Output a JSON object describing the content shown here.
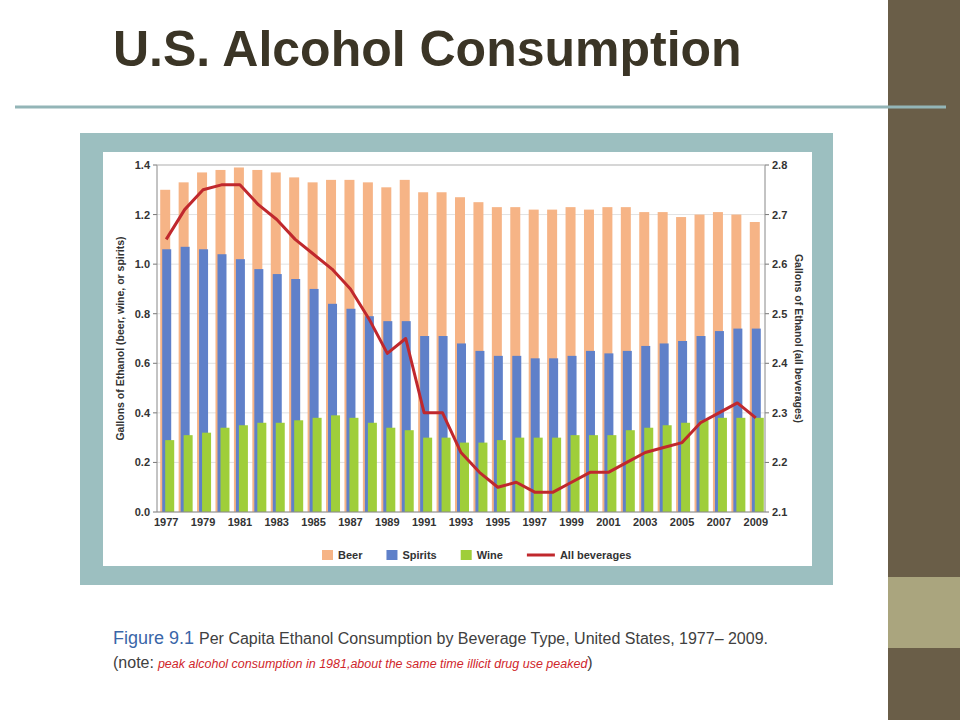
{
  "chart_data": {
    "type": "bar",
    "title": "U.S. Alcohol Consumption",
    "caption": [
      "Figure 9.1",
      "Per Capita Ethanol Consumption by Beverage Type, United States, 1977– 2009. (note:",
      "peak alcohol consumption in 1981,about the same time illicit drug use peaked",
      ")"
    ],
    "ylabel": "Gallons of Ethanol (beer, wine, or spirits)",
    "y2label": "Gallons of Ethanol (all beverages)",
    "categories": [
      "1977",
      null,
      "1979",
      null,
      "1981",
      null,
      "1983",
      null,
      "1985",
      null,
      "1987",
      null,
      "1989",
      null,
      "1991",
      null,
      "1993",
      null,
      "1995",
      null,
      "1997",
      null,
      "1999",
      null,
      "2001",
      null,
      "2003",
      null,
      "2005",
      null,
      "2007",
      null,
      "2009"
    ],
    "series": [
      {
        "name": "Beer",
        "type": "bar",
        "color": "#f6b486",
        "values": [
          1.3,
          1.33,
          1.37,
          1.38,
          1.39,
          1.38,
          1.37,
          1.35,
          1.33,
          1.34,
          1.34,
          1.33,
          1.31,
          1.34,
          1.29,
          1.29,
          1.27,
          1.25,
          1.23,
          1.23,
          1.22,
          1.22,
          1.23,
          1.22,
          1.23,
          1.23,
          1.21,
          1.21,
          1.19,
          1.2,
          1.21,
          1.2,
          1.17
        ]
      },
      {
        "name": "Spirits",
        "type": "bar",
        "color": "#5f80c9",
        "values": [
          1.06,
          1.07,
          1.06,
          1.04,
          1.02,
          0.98,
          0.96,
          0.94,
          0.9,
          0.84,
          0.82,
          0.79,
          0.77,
          0.77,
          0.71,
          0.71,
          0.68,
          0.65,
          0.63,
          0.63,
          0.62,
          0.62,
          0.63,
          0.65,
          0.64,
          0.65,
          0.67,
          0.68,
          0.69,
          0.71,
          0.73,
          0.74,
          0.74
        ]
      },
      {
        "name": "Wine",
        "type": "bar",
        "color": "#9fce3a",
        "values": [
          0.29,
          0.31,
          0.32,
          0.34,
          0.35,
          0.36,
          0.36,
          0.37,
          0.38,
          0.39,
          0.38,
          0.36,
          0.34,
          0.33,
          0.3,
          0.3,
          0.28,
          0.28,
          0.29,
          0.3,
          0.3,
          0.3,
          0.31,
          0.31,
          0.31,
          0.33,
          0.34,
          0.35,
          0.36,
          0.37,
          0.38,
          0.38,
          0.38
        ]
      },
      {
        "name": "All beverages",
        "type": "line",
        "axis": "y2",
        "color": "#c0282d",
        "line_style": "solid",
        "values": [
          2.65,
          2.71,
          2.75,
          2.76,
          2.76,
          2.72,
          2.69,
          2.65,
          2.62,
          2.59,
          2.55,
          2.49,
          2.42,
          2.45,
          2.3,
          2.3,
          2.22,
          2.18,
          2.15,
          2.16,
          2.14,
          2.14,
          2.16,
          2.18,
          2.18,
          2.2,
          2.22,
          2.23,
          2.24,
          2.28,
          2.3,
          2.32,
          2.29
        ]
      }
    ],
    "ylim": [
      0,
      1.4
    ],
    "yticks": [
      {
        "value": 0,
        "label": "0.0"
      },
      0.2,
      0.4,
      0.6,
      0.8,
      {
        "value": 1,
        "label": "1.0"
      },
      1.2,
      1.4
    ],
    "y2lim": [
      2.1,
      2.8
    ],
    "y2ticks": [
      2.1,
      2.2,
      2.3,
      2.4,
      2.5,
      2.6,
      2.7,
      2.8
    ],
    "grid": true,
    "legend": "bottom"
  }
}
